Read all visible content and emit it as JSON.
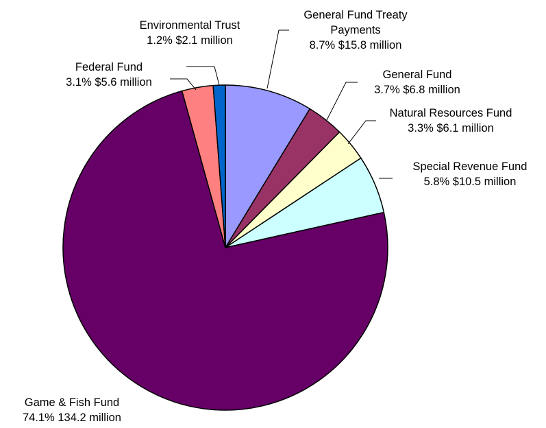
{
  "chart_data": {
    "type": "pie",
    "start_angle_deg": 0,
    "direction": "clockwise",
    "slices": [
      {
        "label": "General Fund Treaty Payments",
        "label_lines": [
          "General Fund Treaty",
          "Payments",
          "8.7% $15.8 million"
        ],
        "percent": 8.7,
        "amount": "$15.8 million",
        "color": "#9999ff"
      },
      {
        "label": "General Fund",
        "label_lines": [
          "General Fund",
          "3.7% $6.8 million"
        ],
        "percent": 3.7,
        "amount": "$6.8 million",
        "color": "#993366"
      },
      {
        "label": "Natural Resources Fund",
        "label_lines": [
          "Natural Resources Fund",
          "3.3% $6.1 million"
        ],
        "percent": 3.3,
        "amount": "$6.1 million",
        "color": "#ffffcc"
      },
      {
        "label": "Special Revenue Fund",
        "label_lines": [
          "Special Revenue Fund",
          "5.8% $10.5 million"
        ],
        "percent": 5.8,
        "amount": "$10.5 million",
        "color": "#ccffff"
      },
      {
        "label": "Game & Fish Fund",
        "label_lines": [
          "Game & Fish Fund",
          "74.1% 134.2 million"
        ],
        "percent": 74.1,
        "amount": "134.2 million",
        "color": "#660066"
      },
      {
        "label": "Federal Fund",
        "label_lines": [
          "Federal Fund",
          "3.1% $5.6 million"
        ],
        "percent": 3.1,
        "amount": "$5.6 million",
        "color": "#ff8080"
      },
      {
        "label": "Environmental Trust",
        "label_lines": [
          "Environmental Trust",
          "1.2% $2.1 million"
        ],
        "percent": 1.2,
        "amount": "$2.1 million",
        "color": "#0066cc"
      }
    ]
  }
}
